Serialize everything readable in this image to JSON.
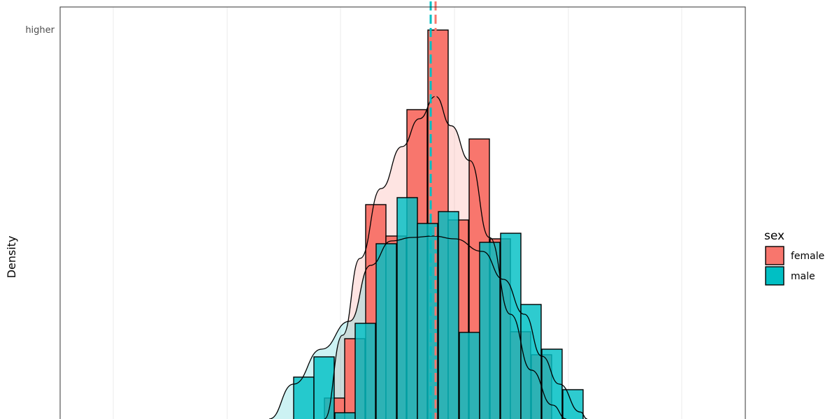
{
  "chart_data": {
    "type": "bar",
    "title": "",
    "xlabel": "",
    "ylabel": "Density",
    "y_tick_labels": [
      "higher"
    ],
    "grid": true,
    "legend": {
      "title": "sex",
      "position": "right",
      "entries": [
        {
          "name": "female",
          "color": "#F8766D"
        },
        {
          "name": "male",
          "color": "#00BFC4"
        }
      ]
    },
    "series": [
      {
        "name": "female",
        "color": "#F8766D",
        "mean_line_x": 623,
        "bins": [
          {
            "x": 464,
            "h": 30
          },
          {
            "x": 493,
            "h": 115
          },
          {
            "x": 523,
            "h": 307
          },
          {
            "x": 552,
            "h": 262
          },
          {
            "x": 582,
            "h": 443
          },
          {
            "x": 612,
            "h": 557
          },
          {
            "x": 641,
            "h": 285
          },
          {
            "x": 671,
            "h": 401
          },
          {
            "x": 701,
            "h": 258
          },
          {
            "x": 730,
            "h": 125
          },
          {
            "x": 760,
            "h": 92
          }
        ],
        "density_curve": [
          [
            464,
            0
          ],
          [
            490,
            120
          ],
          [
            515,
            230
          ],
          [
            545,
            330
          ],
          [
            575,
            390
          ],
          [
            600,
            430
          ],
          [
            623,
            462
          ],
          [
            645,
            420
          ],
          [
            672,
            370
          ],
          [
            700,
            260
          ],
          [
            730,
            150
          ],
          [
            760,
            70
          ],
          [
            790,
            20
          ],
          [
            810,
            0
          ]
        ]
      },
      {
        "name": "male",
        "color": "#00BFC4",
        "mean_line_x": 616,
        "bins": [
          {
            "x": 420,
            "h": 60
          },
          {
            "x": 449,
            "h": 89
          },
          {
            "x": 479,
            "h": 9
          },
          {
            "x": 508,
            "h": 137
          },
          {
            "x": 538,
            "h": 251
          },
          {
            "x": 568,
            "h": 317
          },
          {
            "x": 597,
            "h": 280
          },
          {
            "x": 627,
            "h": 297
          },
          {
            "x": 657,
            "h": 124
          },
          {
            "x": 686,
            "h": 253
          },
          {
            "x": 716,
            "h": 266
          },
          {
            "x": 745,
            "h": 164
          },
          {
            "x": 775,
            "h": 100
          },
          {
            "x": 805,
            "h": 42
          }
        ],
        "density_curve": [
          [
            385,
            0
          ],
          [
            420,
            50
          ],
          [
            460,
            100
          ],
          [
            500,
            140
          ],
          [
            530,
            220
          ],
          [
            560,
            255
          ],
          [
            590,
            260
          ],
          [
            620,
            262
          ],
          [
            650,
            258
          ],
          [
            690,
            240
          ],
          [
            720,
            200
          ],
          [
            750,
            150
          ],
          [
            775,
            90
          ],
          [
            800,
            50
          ],
          [
            830,
            10
          ],
          [
            840,
            0
          ]
        ]
      }
    ]
  }
}
